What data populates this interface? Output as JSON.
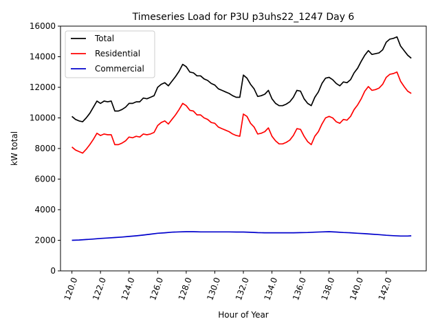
{
  "chart_data": {
    "type": "line",
    "title": "Timeseries Load for P3U p3uhs22_1247  Day 6",
    "xlabel": "Hour of Year",
    "ylabel": "kW total",
    "xlim": [
      119.2,
      144.8
    ],
    "ylim": [
      0,
      16000
    ],
    "xticks": [
      120,
      122,
      124,
      126,
      128,
      130,
      132,
      134,
      136,
      138,
      140,
      142
    ],
    "xtick_labels": [
      "120.0",
      "122.0",
      "124.0",
      "126.0",
      "128.0",
      "130.0",
      "132.0",
      "134.0",
      "136.0",
      "138.0",
      "140.0",
      "142.0"
    ],
    "yticks": [
      0,
      2000,
      4000,
      6000,
      8000,
      10000,
      12000,
      14000,
      16000
    ],
    "ytick_labels": [
      "0",
      "2000",
      "4000",
      "6000",
      "8000",
      "10000",
      "12000",
      "14000",
      "16000"
    ],
    "legend_position": "top-left",
    "series": [
      {
        "name": "Total",
        "color": "#000000",
        "x": [
          120.0,
          120.25,
          120.5,
          120.75,
          121.0,
          121.25,
          121.5,
          121.75,
          122.0,
          122.25,
          122.5,
          122.75,
          123.0,
          123.25,
          123.5,
          123.75,
          124.0,
          124.25,
          124.5,
          124.75,
          125.0,
          125.25,
          125.5,
          125.75,
          126.0,
          126.25,
          126.5,
          126.75,
          127.0,
          127.25,
          127.5,
          127.75,
          128.0,
          128.25,
          128.5,
          128.75,
          129.0,
          129.25,
          129.5,
          129.75,
          130.0,
          130.25,
          130.5,
          130.75,
          131.0,
          131.25,
          131.5,
          131.75,
          132.0,
          132.25,
          132.5,
          132.75,
          133.0,
          133.25,
          133.5,
          133.75,
          134.0,
          134.25,
          134.5,
          134.75,
          135.0,
          135.25,
          135.5,
          135.75,
          136.0,
          136.25,
          136.5,
          136.75,
          137.0,
          137.25,
          137.5,
          137.75,
          138.0,
          138.25,
          138.5,
          138.75,
          139.0,
          139.25,
          139.5,
          139.75,
          140.0,
          140.25,
          140.5,
          140.75,
          141.0,
          141.25,
          141.5,
          141.75,
          142.0,
          142.25,
          142.5,
          142.75,
          143.0,
          143.25,
          143.5,
          143.75
        ],
        "values": [
          10100,
          9900,
          9800,
          9750,
          10000,
          10300,
          10700,
          11100,
          10950,
          11100,
          11050,
          11100,
          10450,
          10450,
          10550,
          10700,
          10950,
          10950,
          11050,
          11050,
          11300,
          11250,
          11350,
          11450,
          12000,
          12200,
          12300,
          12100,
          12400,
          12700,
          13050,
          13500,
          13350,
          13000,
          12950,
          12750,
          12750,
          12550,
          12450,
          12250,
          12150,
          11900,
          11800,
          11700,
          11600,
          11450,
          11350,
          11350,
          12800,
          12600,
          12200,
          11900,
          11400,
          11450,
          11550,
          11800,
          11250,
          10950,
          10800,
          10800,
          10900,
          11050,
          11350,
          11800,
          11750,
          11250,
          10950,
          10800,
          11350,
          11700,
          12250,
          12600,
          12650,
          12500,
          12250,
          12100,
          12350,
          12300,
          12500,
          12950,
          13250,
          13700,
          14100,
          14400,
          14150,
          14200,
          14250,
          14450,
          14950,
          15150,
          15200,
          15300,
          14700,
          14400,
          14100,
          13900
        ]
      },
      {
        "name": "Residential",
        "color": "#ff0000",
        "x": [
          120.0,
          120.25,
          120.5,
          120.75,
          121.0,
          121.25,
          121.5,
          121.75,
          122.0,
          122.25,
          122.5,
          122.75,
          123.0,
          123.25,
          123.5,
          123.75,
          124.0,
          124.25,
          124.5,
          124.75,
          125.0,
          125.25,
          125.5,
          125.75,
          126.0,
          126.25,
          126.5,
          126.75,
          127.0,
          127.25,
          127.5,
          127.75,
          128.0,
          128.25,
          128.5,
          128.75,
          129.0,
          129.25,
          129.5,
          129.75,
          130.0,
          130.25,
          130.5,
          130.75,
          131.0,
          131.25,
          131.5,
          131.75,
          132.0,
          132.25,
          132.5,
          132.75,
          133.0,
          133.25,
          133.5,
          133.75,
          134.0,
          134.25,
          134.5,
          134.75,
          135.0,
          135.25,
          135.5,
          135.75,
          136.0,
          136.25,
          136.5,
          136.75,
          137.0,
          137.25,
          137.5,
          137.75,
          138.0,
          138.25,
          138.5,
          138.75,
          139.0,
          139.25,
          139.5,
          139.75,
          140.0,
          140.25,
          140.5,
          140.75,
          141.0,
          141.25,
          141.5,
          141.75,
          142.0,
          142.25,
          142.5,
          142.75,
          143.0,
          143.25,
          143.5,
          143.75
        ],
        "values": [
          8100,
          7900,
          7800,
          7700,
          7950,
          8250,
          8600,
          9000,
          8850,
          8950,
          8900,
          8900,
          8250,
          8250,
          8350,
          8500,
          8750,
          8700,
          8800,
          8750,
          8950,
          8900,
          8950,
          9050,
          9500,
          9700,
          9800,
          9600,
          9900,
          10200,
          10550,
          10950,
          10800,
          10500,
          10450,
          10200,
          10200,
          10000,
          9900,
          9700,
          9650,
          9400,
          9300,
          9200,
          9100,
          8950,
          8850,
          8800,
          10250,
          10100,
          9650,
          9400,
          8950,
          9000,
          9100,
          9350,
          8800,
          8500,
          8300,
          8300,
          8400,
          8550,
          8850,
          9300,
          9250,
          8800,
          8450,
          8250,
          8800,
          9100,
          9600,
          10000,
          10100,
          10000,
          9750,
          9650,
          9900,
          9850,
          10100,
          10550,
          10850,
          11250,
          11750,
          12050,
          11800,
          11850,
          11950,
          12200,
          12650,
          12850,
          12900,
          13000,
          12400,
          12050,
          11750,
          11600
        ]
      },
      {
        "name": "Commercial",
        "color": "#0000cc",
        "x": [
          120.0,
          120.5,
          121.0,
          121.5,
          122.0,
          122.5,
          123.0,
          123.5,
          124.0,
          124.5,
          125.0,
          125.5,
          126.0,
          126.5,
          127.0,
          127.5,
          128.0,
          128.5,
          129.0,
          129.5,
          130.0,
          130.5,
          131.0,
          131.5,
          132.0,
          132.5,
          133.0,
          133.5,
          134.0,
          134.5,
          135.0,
          135.5,
          136.0,
          136.5,
          137.0,
          137.5,
          138.0,
          138.5,
          139.0,
          139.5,
          140.0,
          140.5,
          141.0,
          141.5,
          142.0,
          142.5,
          143.0,
          143.5,
          143.75
        ],
        "values": [
          2000,
          2020,
          2050,
          2080,
          2120,
          2150,
          2180,
          2210,
          2250,
          2290,
          2340,
          2400,
          2460,
          2490,
          2530,
          2550,
          2560,
          2560,
          2550,
          2550,
          2550,
          2550,
          2550,
          2540,
          2540,
          2520,
          2500,
          2490,
          2490,
          2490,
          2490,
          2490,
          2500,
          2510,
          2530,
          2550,
          2560,
          2540,
          2510,
          2490,
          2460,
          2430,
          2400,
          2370,
          2330,
          2300,
          2280,
          2280,
          2290
        ]
      }
    ]
  }
}
